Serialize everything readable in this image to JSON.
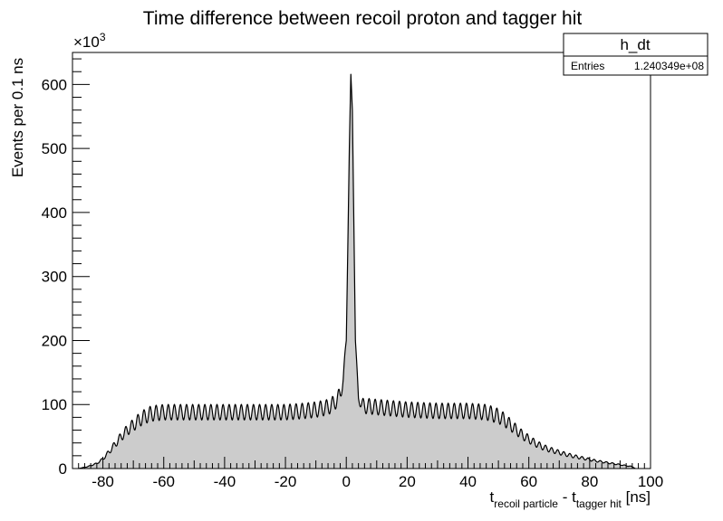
{
  "chart_data": {
    "type": "area",
    "title": "Time difference between recoil proton and tagger hit",
    "xlabel": {
      "main": "t",
      "sub1": "recoil particle",
      "mid": " - t",
      "sub2": "tagger hit",
      "tail": " [ns]"
    },
    "ylabel": "Events per 0.1 ns",
    "y_multiplier": {
      "base": "×10",
      "exp": "3"
    },
    "xlim": [
      -90,
      100
    ],
    "ylim": [
      0,
      650
    ],
    "x_ticks": [
      -80,
      -60,
      -40,
      -20,
      0,
      20,
      40,
      60,
      80,
      100
    ],
    "y_ticks": [
      0,
      100,
      200,
      300,
      400,
      500,
      600
    ],
    "grid": false,
    "fill_color": "#cccccc",
    "line_color": "#000000",
    "series": [
      {
        "envelope_x": [
          -88,
          -85,
          -82,
          -80,
          -78,
          -76,
          -74,
          -72,
          -70,
          -68,
          -66,
          -64,
          -60,
          -50,
          -40,
          -30,
          -20,
          -14,
          -10,
          -6,
          -4,
          -2,
          -1,
          0,
          0.5,
          1,
          1.5,
          2,
          2.5,
          3,
          4,
          5,
          6,
          8,
          10,
          20,
          30,
          40,
          46,
          50,
          52,
          54,
          56,
          58,
          60,
          62,
          64,
          66,
          68,
          70,
          74,
          78,
          82,
          86,
          90,
          94,
          95
        ],
        "envelope_y": [
          0,
          3,
          8,
          15,
          26,
          38,
          50,
          60,
          68,
          76,
          82,
          86,
          88,
          88,
          88,
          88,
          88,
          90,
          92,
          96,
          102,
          115,
          140,
          200,
          350,
          500,
          615,
          560,
          380,
          200,
          110,
          100,
          98,
          97,
          96,
          92,
          90,
          90,
          88,
          82,
          76,
          68,
          60,
          52,
          46,
          40,
          35,
          31,
          28,
          25,
          20,
          16,
          12,
          9,
          6,
          3,
          0
        ],
        "modulation": {
          "period_ns": 2.0,
          "amplitude_events_thousand": 12
        }
      }
    ]
  },
  "stats_box": {
    "name": "h_dt",
    "entries_label": "Entries",
    "entries_value": "1.240349e+08"
  }
}
